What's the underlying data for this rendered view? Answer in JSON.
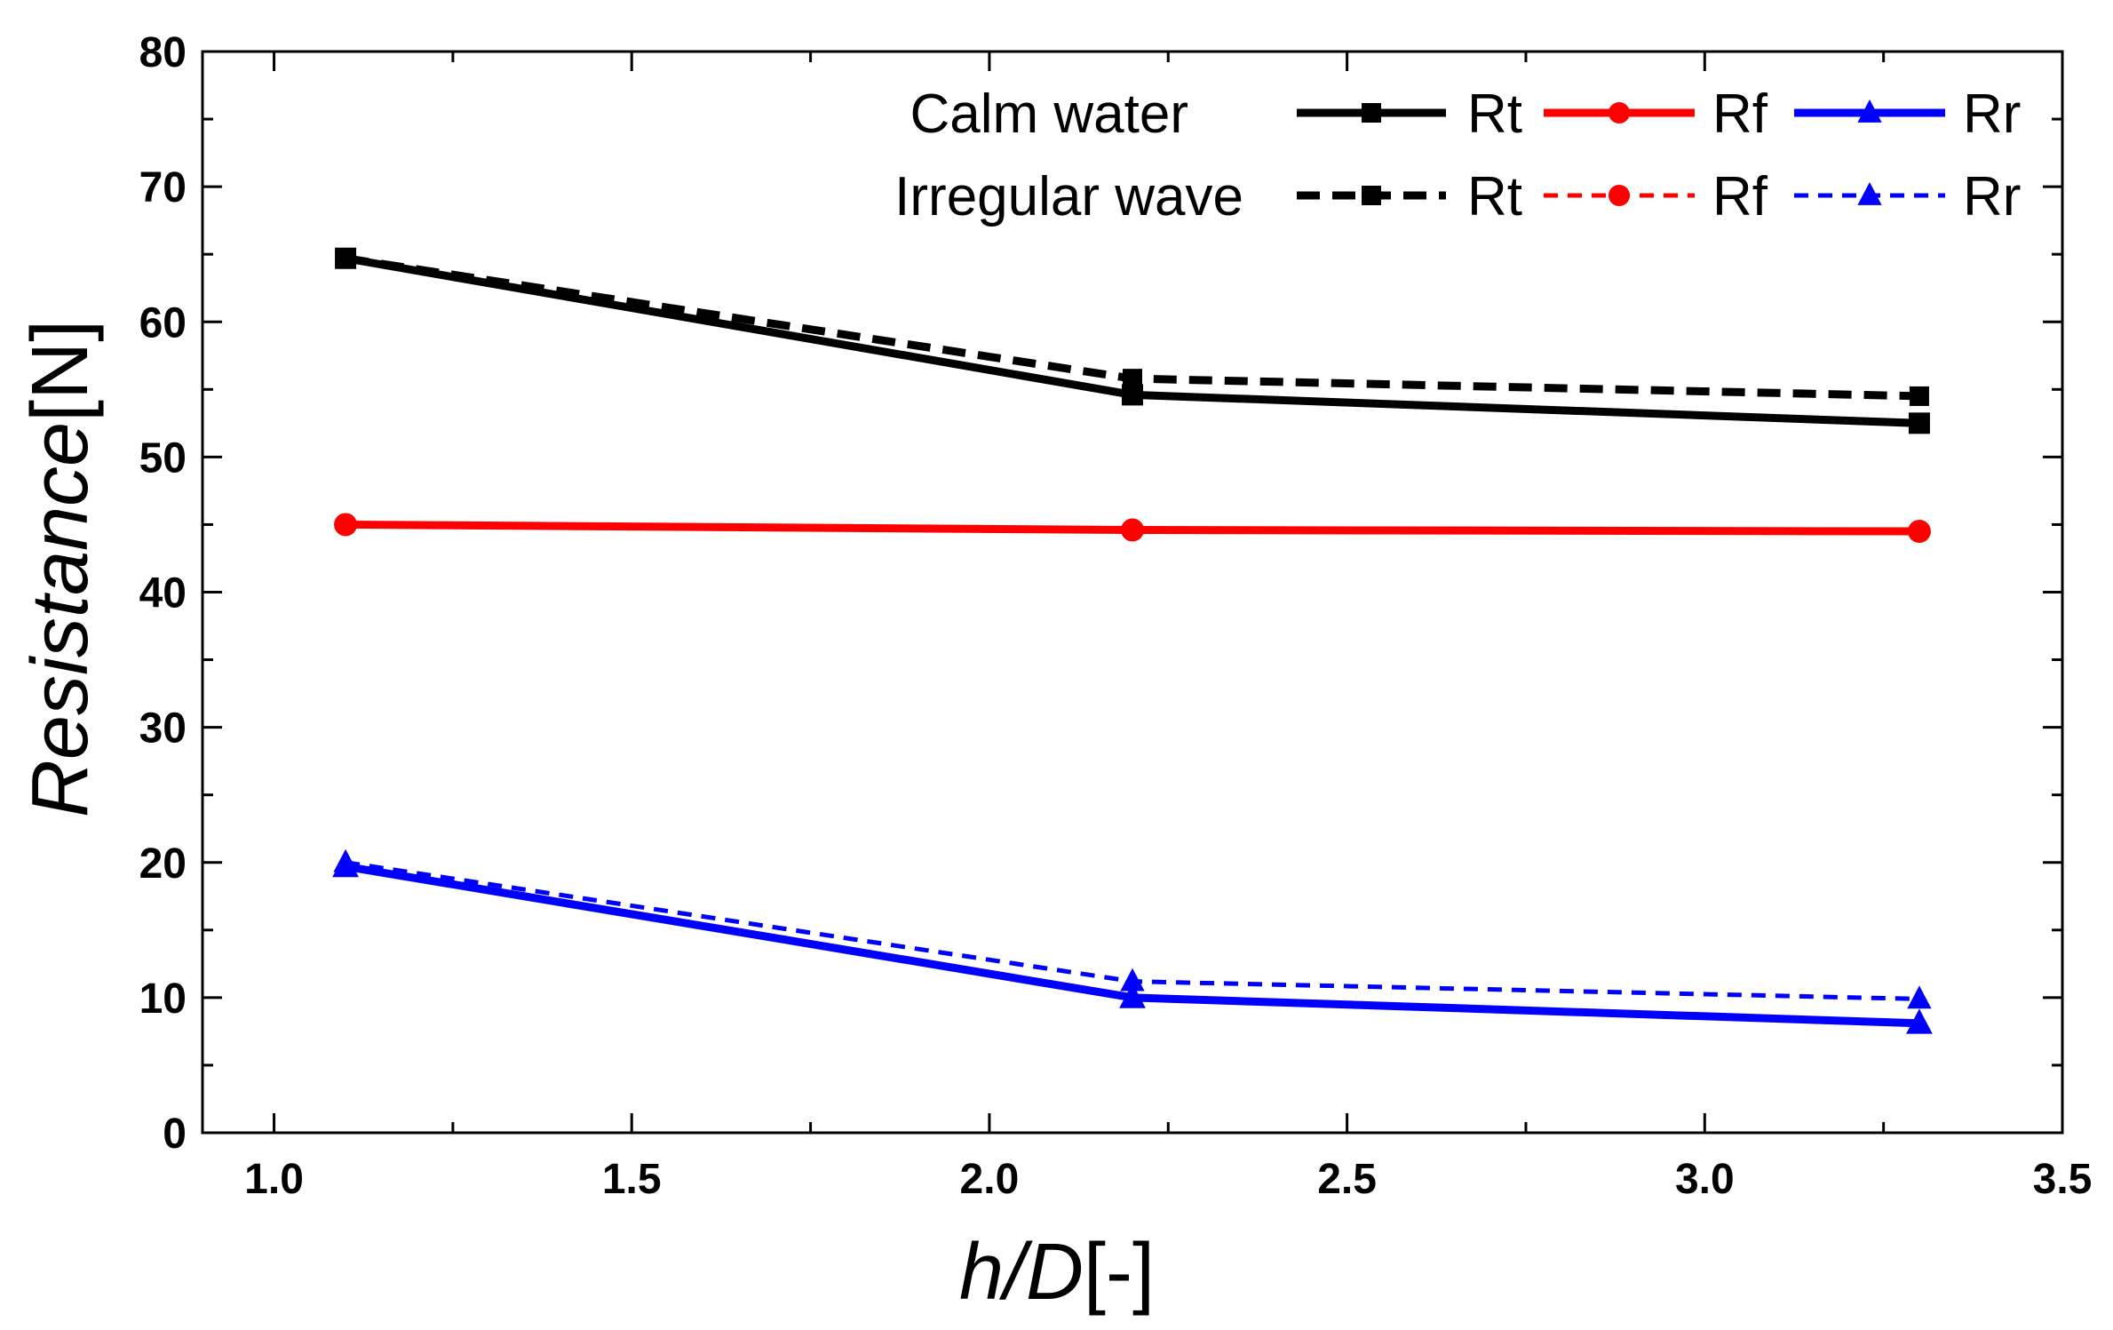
{
  "chart_data": {
    "type": "line",
    "title": "",
    "xlabel_italic": "h/D",
    "xlabel_unit": "[-]",
    "ylabel_italic": "Resistance",
    "ylabel_unit": "[N]",
    "xlim": [
      0.9,
      3.5
    ],
    "ylim": [
      0,
      80
    ],
    "x_ticks": [
      1.0,
      1.5,
      2.0,
      2.5,
      3.0,
      3.5
    ],
    "x_tick_labels": [
      "1.0",
      "1.5",
      "2.0",
      "2.5",
      "3.0",
      "3.5"
    ],
    "y_ticks": [
      0,
      10,
      20,
      30,
      40,
      50,
      60,
      70,
      80
    ],
    "y_tick_labels": [
      "0",
      "10",
      "20",
      "30",
      "40",
      "50",
      "60",
      "70",
      "80"
    ],
    "grid": false,
    "legend_position": "top-right",
    "legend_group_labels": [
      "Calm water",
      "Irregular wave"
    ],
    "x": [
      1.1,
      2.2,
      3.3
    ],
    "series": [
      {
        "name": "Rt",
        "group": "Calm water",
        "color": "#000000",
        "style": "solid",
        "marker": "square",
        "values": [
          64.7,
          54.6,
          52.5
        ]
      },
      {
        "name": "Rf",
        "group": "Calm water",
        "color": "#ff0000",
        "style": "solid",
        "marker": "circle",
        "values": [
          45.0,
          44.6,
          44.5
        ]
      },
      {
        "name": "Rr",
        "group": "Calm water",
        "color": "#0000ff",
        "style": "solid",
        "marker": "triangle",
        "values": [
          19.7,
          10.0,
          8.1
        ]
      },
      {
        "name": "Rt",
        "group": "Irregular wave",
        "color": "#000000",
        "style": "dashed",
        "marker": "square",
        "values": [
          64.7,
          55.8,
          54.5
        ]
      },
      {
        "name": "Rf",
        "group": "Irregular wave",
        "color": "#ff0000",
        "style": "dashed",
        "marker": "circle",
        "values": [
          45.0,
          44.6,
          44.5
        ]
      },
      {
        "name": "Rr",
        "group": "Irregular wave",
        "color": "#0000ff",
        "style": "dashed",
        "marker": "triangle",
        "values": [
          20.0,
          11.2,
          9.9
        ]
      }
    ]
  }
}
